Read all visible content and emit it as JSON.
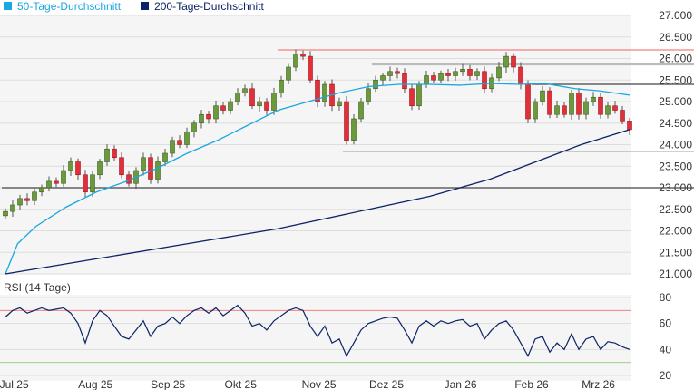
{
  "legend": [
    {
      "label": "50-Tage-Durchschnitt",
      "color": "#1aa7e0"
    },
    {
      "label": "200-Tage-Durchschnitt",
      "color": "#0b2366"
    }
  ],
  "chart_data": {
    "type": "candlestick",
    "y_ticks": [
      "27.000",
      "26.500",
      "26.000",
      "25.500",
      "25.000",
      "24.500",
      "24.000",
      "23.500",
      "23.000",
      "22.500",
      "22.000",
      "21.500",
      "21.000"
    ],
    "y_tick_values": [
      27000,
      26500,
      26000,
      25500,
      25000,
      24500,
      24000,
      23500,
      23000,
      22500,
      22000,
      21500,
      21000
    ],
    "ylim": [
      21000,
      27000
    ],
    "x_labels": [
      {
        "label": "Jul 25",
        "idx": 1.2
      },
      {
        "label": "Aug 25",
        "idx": 12.4
      },
      {
        "label": "Sep 25",
        "idx": 22.4
      },
      {
        "label": "Okt 25",
        "idx": 32.4
      },
      {
        "label": "Nov 25",
        "idx": 43.2
      },
      {
        "label": "Dez 25",
        "idx": 52.5
      },
      {
        "label": "Jan 26",
        "idx": 62.7
      },
      {
        "label": "Feb 26",
        "idx": 72.5
      },
      {
        "label": "Mrz 26",
        "idx": 81.7
      }
    ],
    "closes": [
      22450,
      22600,
      22750,
      22700,
      22900,
      23000,
      23150,
      23100,
      23400,
      23600,
      23300,
      22900,
      23300,
      23600,
      23900,
      23700,
      23300,
      23100,
      23400,
      23700,
      23200,
      23600,
      23800,
      24100,
      24000,
      24300,
      24500,
      24700,
      24600,
      24900,
      24800,
      25000,
      25200,
      25300,
      24900,
      25000,
      24800,
      25200,
      25500,
      25800,
      26100,
      26050,
      25500,
      25000,
      25400,
      24900,
      25000,
      24100,
      24600,
      25000,
      25300,
      25500,
      25600,
      25700,
      25650,
      25300,
      24900,
      25400,
      25600,
      25500,
      25650,
      25600,
      25700,
      25750,
      25600,
      25700,
      25300,
      25550,
      25800,
      26050,
      25800,
      25400,
      24600,
      25000,
      25250,
      24700,
      24900,
      24700,
      25200,
      24700,
      25000,
      25100,
      24700,
      24900,
      24800,
      24550,
      24350
    ],
    "ma50": [
      [
        0,
        21000
      ],
      [
        4,
        21700
      ],
      [
        10,
        22100
      ],
      [
        20,
        22550
      ],
      [
        30,
        22900
      ],
      [
        40,
        23150
      ],
      [
        50,
        23450
      ],
      [
        60,
        23800
      ],
      [
        70,
        24100
      ],
      [
        80,
        24450
      ],
      [
        90,
        24800
      ],
      [
        100,
        25000
      ],
      [
        110,
        25200
      ],
      [
        120,
        25350
      ],
      [
        130,
        25400
      ],
      [
        140,
        25400
      ],
      [
        150,
        25380
      ],
      [
        160,
        25420
      ],
      [
        170,
        25400
      ],
      [
        178,
        25420
      ],
      [
        188,
        25300
      ],
      [
        196,
        25250
      ],
      [
        206,
        25150
      ]
    ],
    "ma200": [
      [
        0,
        21000
      ],
      [
        30,
        21350
      ],
      [
        60,
        21700
      ],
      [
        90,
        22050
      ],
      [
        120,
        22500
      ],
      [
        140,
        22800
      ],
      [
        160,
        23200
      ],
      [
        175,
        23600
      ],
      [
        190,
        24000
      ],
      [
        206,
        24350
      ]
    ],
    "hlines": [
      {
        "value": 26200,
        "color": "#f08080",
        "from": 38
      },
      {
        "value": 25870,
        "color": "#bbbbbb",
        "from": 51
      },
      {
        "value": 25400,
        "color": "#444444",
        "from": 73
      },
      {
        "value": 23850,
        "color": "#444444",
        "from": 47
      },
      {
        "value": 23000,
        "color": "#444444",
        "from": 0
      }
    ],
    "rsi": {
      "title": "RSI (14 Tage)",
      "ticks": [
        "80",
        "60",
        "40",
        "20"
      ],
      "tick_values": [
        80,
        60,
        40,
        20
      ],
      "upper": 70,
      "lower": 30,
      "values": [
        65,
        70,
        72,
        68,
        70,
        72,
        70,
        71,
        72,
        68,
        60,
        45,
        62,
        70,
        66,
        58,
        50,
        48,
        55,
        62,
        50,
        58,
        60,
        65,
        60,
        66,
        70,
        72,
        68,
        72,
        66,
        70,
        74,
        68,
        58,
        60,
        55,
        62,
        66,
        70,
        72,
        70,
        58,
        50,
        58,
        45,
        48,
        35,
        45,
        55,
        60,
        62,
        64,
        65,
        64,
        55,
        45,
        58,
        62,
        58,
        62,
        60,
        62,
        63,
        58,
        60,
        48,
        55,
        60,
        62,
        55,
        45,
        35,
        48,
        50,
        38,
        45,
        40,
        52,
        40,
        48,
        50,
        40,
        46,
        45,
        42,
        40
      ]
    }
  }
}
